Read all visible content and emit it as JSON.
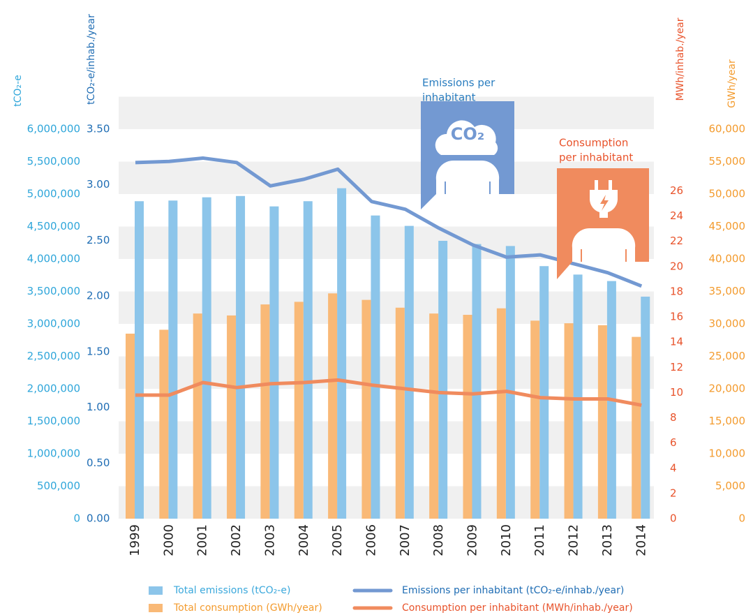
{
  "chart_data": {
    "type": "combo",
    "categories": [
      "1999",
      "2000",
      "2001",
      "2002",
      "2003",
      "2004",
      "2005",
      "2006",
      "2007",
      "2008",
      "2009",
      "2010",
      "2011",
      "2012",
      "2013",
      "2014"
    ],
    "series": [
      {
        "name": "Total emissions (tCO₂-e)",
        "type": "bar",
        "axis": "y",
        "color": "#8cc5ea",
        "values": [
          4890000,
          4900000,
          4950000,
          4970000,
          4810000,
          4890000,
          5090000,
          4670000,
          4510000,
          4280000,
          4230000,
          4200000,
          3890000,
          3760000,
          3660000,
          3420000
        ]
      },
      {
        "name": "Total consumption (GWh/year)",
        "type": "bar",
        "axis": "y4",
        "color": "#f9b977",
        "values": [
          28500,
          29100,
          31600,
          31300,
          33000,
          33400,
          34700,
          33700,
          32500,
          31600,
          31400,
          32400,
          30500,
          30100,
          29800,
          28000
        ]
      },
      {
        "name": "Emissions per inhabitant (tCO₂-e/inhab./year)",
        "type": "line",
        "axis": "y2",
        "color": "#7399d2",
        "values": [
          3.2,
          3.21,
          3.24,
          3.2,
          2.99,
          3.05,
          3.14,
          2.85,
          2.78,
          2.61,
          2.46,
          2.35,
          2.37,
          2.29,
          2.21,
          2.09
        ]
      },
      {
        "name": "Consumption per inhabitant (MWh/inhab./year)",
        "type": "line",
        "axis": "y3",
        "color": "#f08b5e",
        "values": [
          9.8,
          9.8,
          10.8,
          10.4,
          10.7,
          10.8,
          11.0,
          10.6,
          10.3,
          10.0,
          9.9,
          10.1,
          9.6,
          9.5,
          9.5,
          9.0
        ]
      }
    ],
    "ylabel": "tCO₂-e",
    "ylim": [
      0,
      6000000
    ],
    "yticks": [
      0,
      {
        "value": 500000,
        "label": "500,000"
      },
      {
        "value": 1000000,
        "label": "1,000,000"
      },
      {
        "value": 1500000,
        "label": "1,500,000"
      },
      {
        "value": 2000000,
        "label": "2,000,000"
      },
      {
        "value": 2500000,
        "label": "2,500,000"
      },
      {
        "value": 3000000,
        "label": "3,000,000"
      },
      {
        "value": 3500000,
        "label": "3,500,000"
      },
      {
        "value": 4000000,
        "label": "4,000,000"
      },
      {
        "value": 4500000,
        "label": "4,500,000"
      },
      {
        "value": 5000000,
        "label": "5,000,000"
      },
      {
        "value": 5500000,
        "label": "5,500,000"
      },
      {
        "value": 6000000,
        "label": "6,000,000"
      }
    ],
    "y2label": "tCO₂-e/inhab./year",
    "y2lim": [
      0,
      3.5
    ],
    "y2ticks": [
      {
        "value": 0,
        "label": "0.00"
      },
      {
        "value": 0.5,
        "label": "0.50"
      },
      {
        "value": 1,
        "label": "1.00"
      },
      {
        "value": 1.5,
        "label": "1.50"
      },
      {
        "value": 2,
        "label": "2.00"
      },
      {
        "value": 2.5,
        "label": "2.50"
      },
      {
        "value": 3,
        "label": "3.00"
      },
      {
        "value": 3.5,
        "label": "3.50"
      }
    ],
    "y3label": "MWh/inhab./year",
    "y3lim": [
      0,
      30.9
    ],
    "y3ticks": [
      0,
      2,
      4,
      6,
      8,
      10,
      12,
      14,
      16,
      18,
      20,
      22,
      24,
      26
    ],
    "y4label": "GWh/year",
    "y4lim": [
      0,
      60000
    ],
    "y4ticks": [
      0,
      {
        "value": 5000,
        "label": "5,000"
      },
      {
        "value": 10000,
        "label": "10,000"
      },
      {
        "value": 15000,
        "label": "15,000"
      },
      {
        "value": 20000,
        "label": "20,000"
      },
      {
        "value": 25000,
        "label": "25,000"
      },
      {
        "value": 30000,
        "label": "30,000"
      },
      {
        "value": 35000,
        "label": "35,000"
      },
      {
        "value": 40000,
        "label": "40,000"
      },
      {
        "value": 45000,
        "label": "45,000"
      },
      {
        "value": 50000,
        "label": "50,000"
      },
      {
        "value": 55000,
        "label": "55,000"
      },
      {
        "value": 60000,
        "label": "60,000"
      }
    ],
    "annotations": [
      {
        "lines": [
          "Emissions per",
          "inhabitant"
        ],
        "icon_label": "CO₂"
      },
      {
        "lines": [
          "Consumption",
          "per inhabitant"
        ]
      }
    ]
  }
}
